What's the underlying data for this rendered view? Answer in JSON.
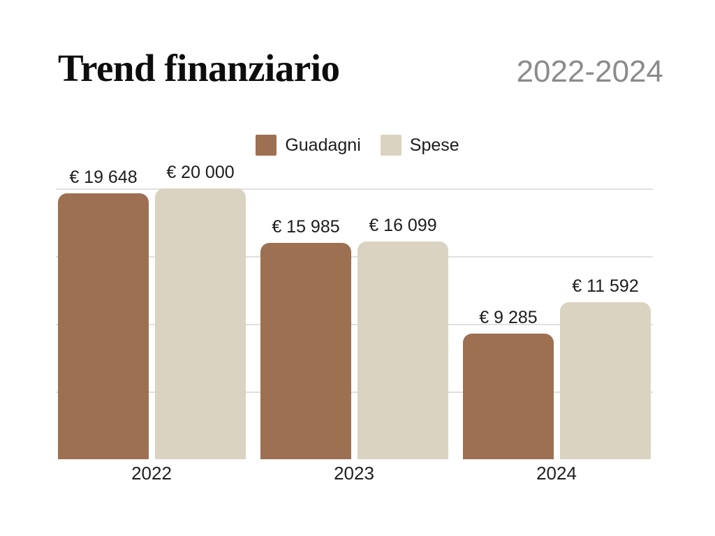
{
  "header": {
    "title": "Trend finanziario",
    "period": "2022-2024"
  },
  "colors": {
    "guadagni": "#9D7052",
    "spese": "#DAD3C1",
    "gridline": "#E0E0E0",
    "period_text": "#8B8B8B",
    "text": "#1C1C1C",
    "background": "#FFFFFF"
  },
  "chart_data": {
    "type": "bar",
    "title": "Trend finanziario",
    "subtitle": "2022-2024",
    "categories": [
      "2022",
      "2023",
      "2024"
    ],
    "series": [
      {
        "name": "Guadagni",
        "color": "#9D7052",
        "values": [
          19648,
          15985,
          9285
        ],
        "labels": [
          "€ 19 648",
          "€ 15 985",
          "€ 9 285"
        ]
      },
      {
        "name": "Spese",
        "color": "#DAD3C1",
        "values": [
          20000,
          16099,
          11592
        ],
        "labels": [
          "€ 20 000",
          "€ 16 099",
          "€ 11 592"
        ]
      }
    ],
    "currency": "EUR",
    "ylim": [
      0,
      20000
    ],
    "gridlines": [
      5000,
      10000,
      15000,
      20000
    ],
    "grid": true,
    "legend_position": "top",
    "xlabel": "",
    "ylabel": ""
  }
}
